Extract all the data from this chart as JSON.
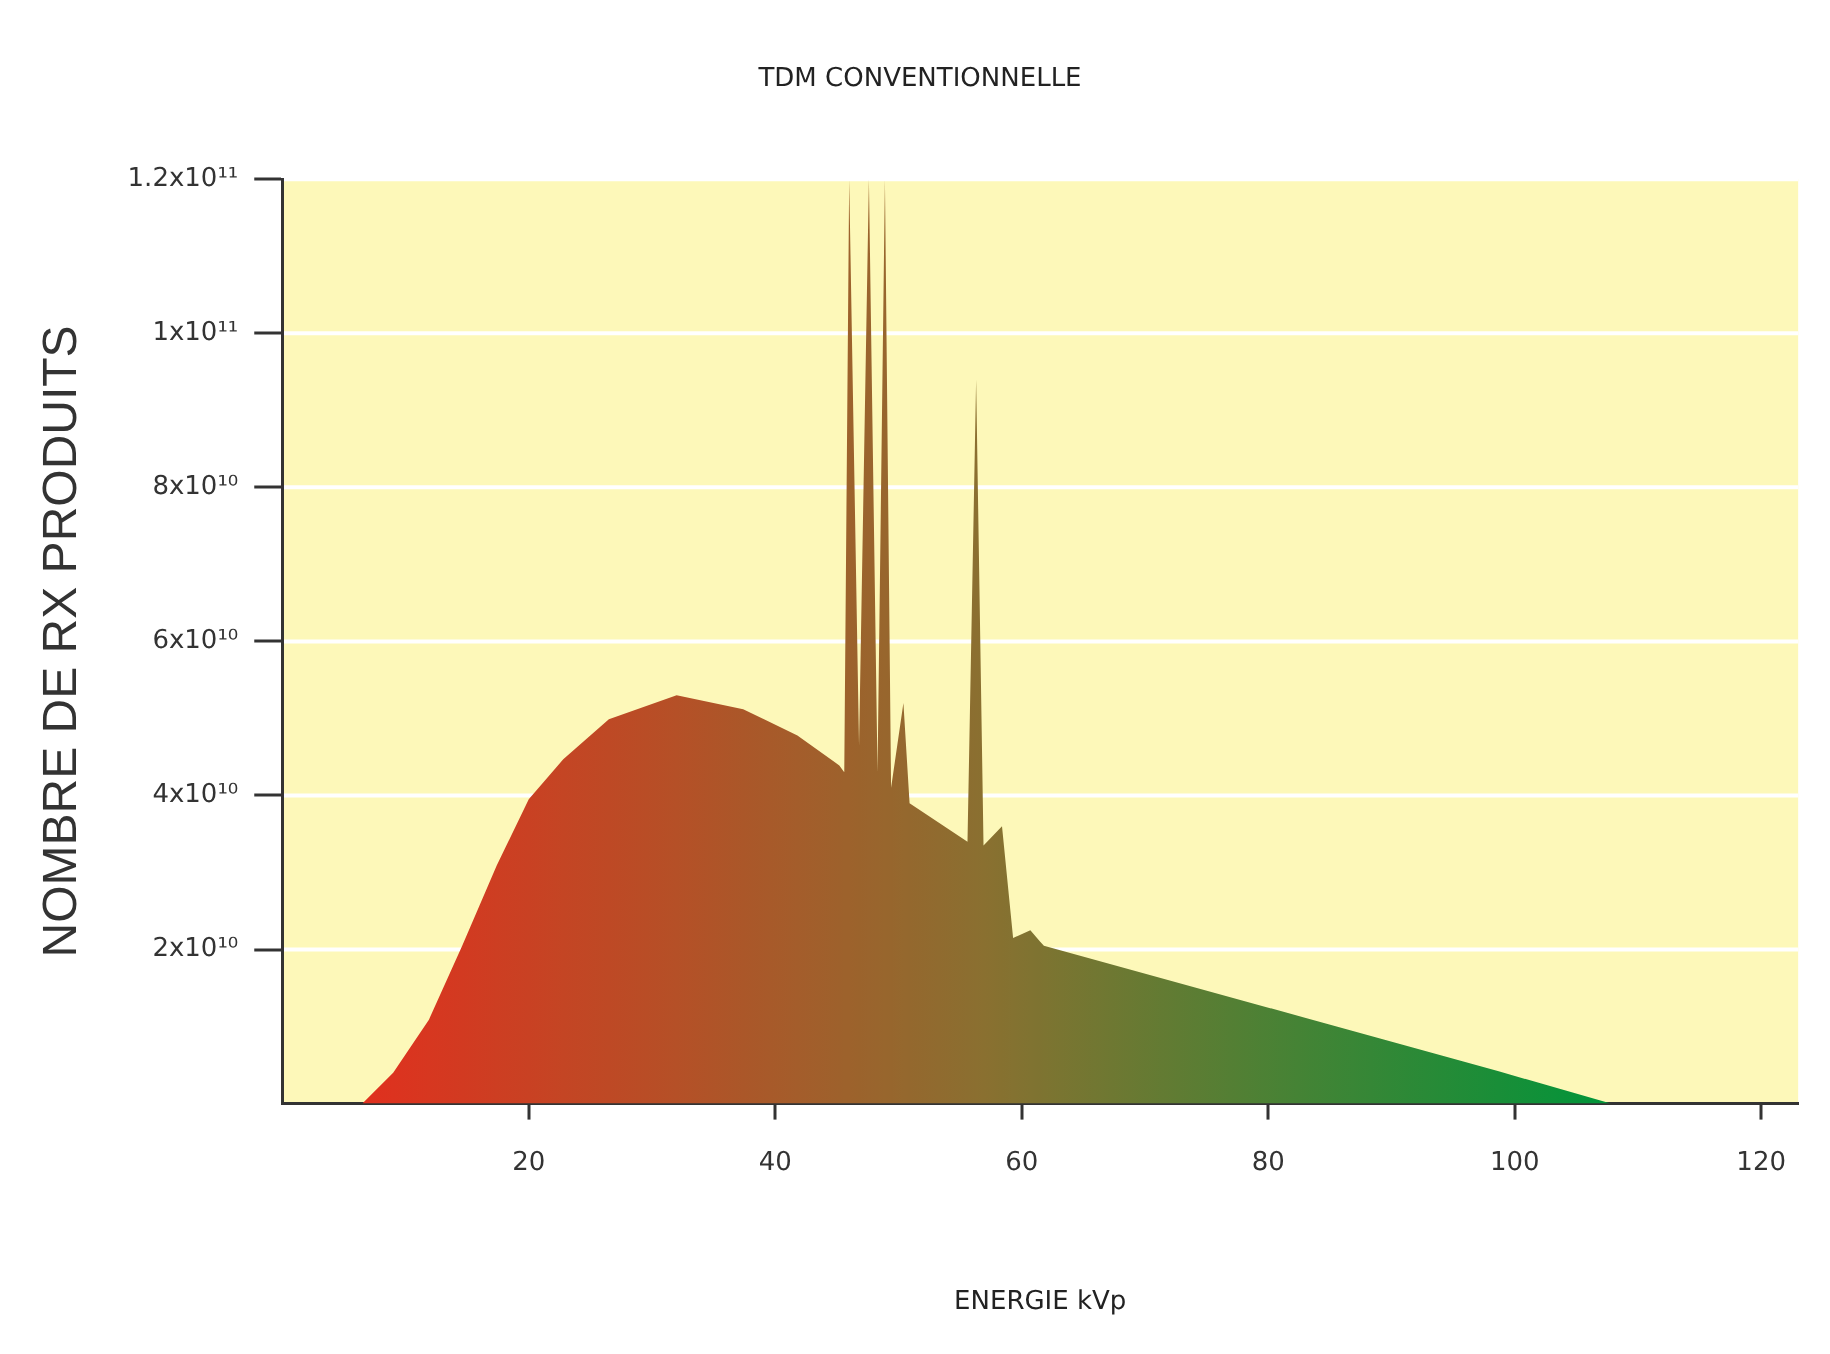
{
  "chart_data": {
    "type": "area",
    "title": "TDM CONVENTIONNELLE",
    "xlabel": "ENERGIE kVp",
    "ylabel": "NOMBRE DE RX PRODUITS",
    "x": [
      6.5,
      9,
      11.9,
      14.6,
      17.4,
      20,
      22.8,
      26.5,
      32,
      37.4,
      41.8,
      45.2,
      45.6,
      46.0,
      46.8,
      47.6,
      48.3,
      48.9,
      49.4,
      50.4,
      50.9,
      55.6,
      56.3,
      56.9,
      58.4,
      59.3,
      60.7,
      61.5,
      61.8,
      82.4,
      98.7,
      107.8
    ],
    "series": [
      {
        "colors": [
          "#e0301e",
          "#dc331f",
          "#d73720",
          "#d23a21",
          "#cd3e22",
          "#c94123",
          "#c44524",
          "#be4925",
          "#b55027",
          "#ab5729",
          "#a45d2b",
          "#9e612c",
          "#9d622c",
          "#9d622c",
          "#9b632c",
          "#9a642d",
          "#99652d",
          "#98662d",
          "#97662d",
          "#95682e",
          "#94682e",
          "#8c6e30",
          "#8b6f30",
          "#8a7030",
          "#867130",
          "#847231",
          "#807331",
          "#7e7331",
          "#7d7431",
          "#458335",
          "#198e38",
          "#00953a"
        ],
        "values": [
          0,
          4000000000.0,
          10900000000.0,
          20500000000.0,
          30900000000.0,
          39500000000.0,
          44700000000.0,
          49900000000.0,
          53000000000.0,
          51200000000.0,
          47800000000.0,
          43900000000.0,
          43000000000.0,
          120000000000.0,
          46500000000.0,
          120000000000.0,
          43000000000.0,
          120000000000.0,
          41000000000.0,
          52000000000.0,
          39000000000.0,
          34000000000.0,
          94000000000.0,
          33500000000.0,
          36000000000.0,
          21500000000.0,
          22500000000.0,
          21000000000.0,
          20500000000.0,
          11400000000.0,
          4200000000.0,
          0
        ]
      }
    ],
    "xlim": [
      0,
      123
    ],
    "xticks": [
      20,
      40,
      60,
      80,
      100,
      120
    ],
    "ylim": [
      0,
      120000000000.0
    ],
    "yticks": [
      {
        "value": 20000000000.0,
        "label": "2x10¹⁰"
      },
      {
        "value": 40000000000.0,
        "label": "4x10¹⁰"
      },
      {
        "value": 60000000000.0,
        "label": "6x10¹⁰"
      },
      {
        "value": 80000000000.0,
        "label": "8x10¹⁰"
      },
      {
        "value": 100000000000.0,
        "label": "1x10¹¹"
      },
      {
        "value": 120000000000.0,
        "label": "1.2x10¹¹"
      }
    ],
    "grid": "y",
    "legend": false
  }
}
